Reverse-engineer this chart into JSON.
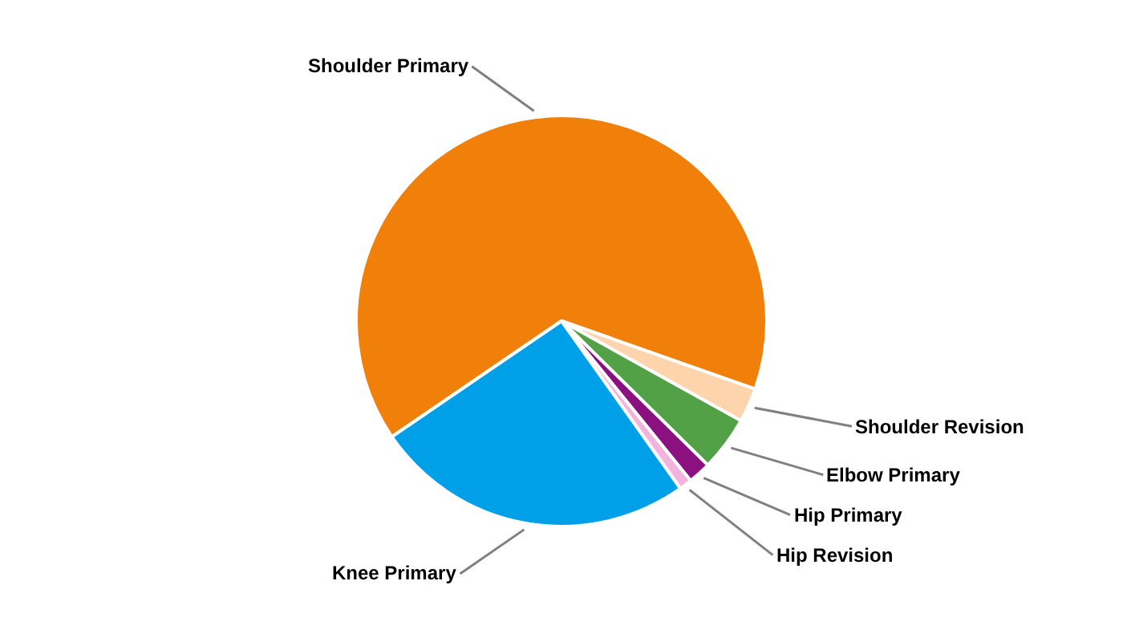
{
  "chart_data": {
    "type": "pie",
    "categories": [
      "Shoulder Primary",
      "Shoulder Revision",
      "Elbow Primary",
      "Hip Primary",
      "Hip Revision",
      "Knee Primary"
    ],
    "values": [
      64.9,
      2.7,
      4.3,
      1.8,
      1.0,
      25.3
    ],
    "colors": [
      "#f0800a",
      "#fdd4ac",
      "#53a146",
      "#8b1181",
      "#f2b3dc",
      "#00a0e9"
    ]
  }
}
